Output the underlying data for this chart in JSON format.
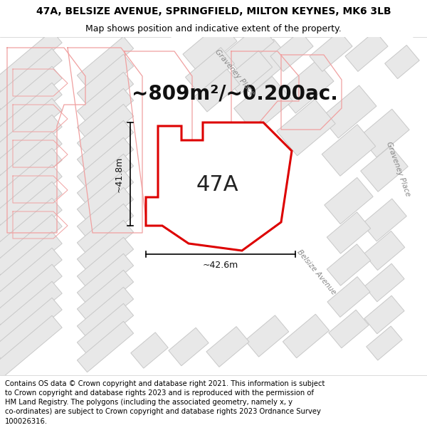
{
  "title_line1": "47A, BELSIZE AVENUE, SPRINGFIELD, MILTON KEYNES, MK6 3LB",
  "title_line2": "Map shows position and indicative extent of the property.",
  "area_text": "~809m²/~0.200ac.",
  "label_47a": "47A",
  "dim_horizontal": "~42.6m",
  "dim_vertical": "~41.8m",
  "road_label_graveney_top": "Graveney Place",
  "road_label_belsize": "Belsize Avenue",
  "road_label_graveney_right": "Graveney Place",
  "footer_text": "Contains OS data © Crown copyright and database right 2021. This information is subject to Crown copyright and database rights 2023 and is reproduced with the permission of HM Land Registry. The polygons (including the associated geometry, namely x, y co-ordinates) are subject to Crown copyright and database rights 2023 Ordnance Survey 100026316.",
  "map_bg": "#ffffff",
  "header_bg": "#ffffff",
  "footer_bg": "#ffffff",
  "building_fill": "#e8e8e8",
  "building_edge": "#c8c8c8",
  "building_outline_pink": "#f0a0a0",
  "property_fill": "#ffffff",
  "property_edge": "#dd0000",
  "road_label_color": "#888888",
  "title_fontsize": 10,
  "subtitle_fontsize": 9,
  "area_fontsize": 20,
  "label_fontsize": 22,
  "dim_fontsize": 9,
  "footer_fontsize": 7.2
}
